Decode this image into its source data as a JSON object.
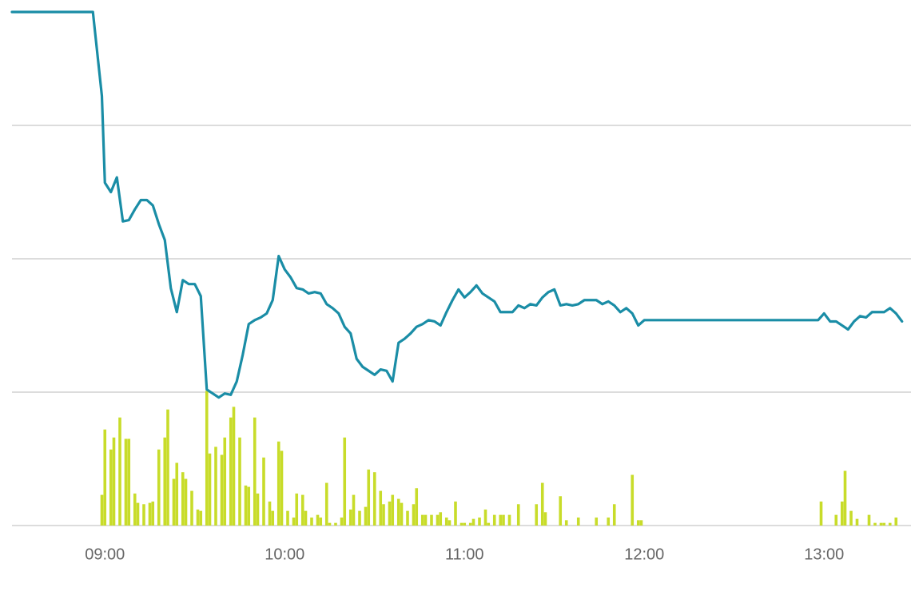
{
  "chart_data": {
    "type": "line",
    "xlim": [
      509,
      809
    ],
    "ylim": [
      0,
      3.85
    ],
    "xticks": [
      {
        "value": 540,
        "label": "09:00"
      },
      {
        "value": 600,
        "label": "10:00"
      },
      {
        "value": 660,
        "label": "11:00"
      },
      {
        "value": 720,
        "label": "12:00"
      },
      {
        "value": 780,
        "label": "13:00"
      }
    ],
    "yticks": [
      0,
      1,
      2,
      3
    ],
    "grid": true,
    "series": [
      {
        "type": "line",
        "color": "#1a8da6",
        "x": [
          509,
          536,
          539,
          540,
          542,
          544,
          546,
          548,
          550,
          552,
          554,
          556,
          558,
          560,
          562,
          564,
          566,
          568,
          570,
          572,
          574,
          576,
          578,
          580,
          582,
          584,
          586,
          588,
          590,
          592,
          594,
          596,
          598,
          600,
          602,
          604,
          606,
          608,
          610,
          612,
          614,
          616,
          618,
          620,
          622,
          624,
          626,
          628,
          630,
          632,
          634,
          636,
          638,
          640,
          642,
          644,
          646,
          648,
          650,
          652,
          654,
          656,
          658,
          660,
          662,
          664,
          666,
          668,
          670,
          672,
          674,
          676,
          678,
          680,
          682,
          684,
          686,
          688,
          690,
          692,
          694,
          696,
          698,
          700,
          702,
          704,
          706,
          708,
          710,
          712,
          714,
          716,
          718,
          720,
          778,
          780,
          782,
          784,
          786,
          788,
          790,
          792,
          794,
          796,
          798,
          800,
          802,
          804,
          806
        ],
        "values": [
          3.85,
          3.85,
          3.22,
          2.57,
          2.5,
          2.61,
          2.28,
          2.29,
          2.37,
          2.44,
          2.44,
          2.4,
          2.26,
          2.14,
          1.78,
          1.6,
          1.84,
          1.81,
          1.81,
          1.72,
          1.02,
          0.99,
          0.96,
          0.99,
          0.98,
          1.08,
          1.28,
          1.51,
          1.54,
          1.56,
          1.59,
          1.69,
          2.02,
          1.92,
          1.86,
          1.78,
          1.77,
          1.74,
          1.75,
          1.74,
          1.66,
          1.63,
          1.59,
          1.49,
          1.44,
          1.25,
          1.19,
          1.16,
          1.13,
          1.17,
          1.16,
          1.08,
          1.37,
          1.4,
          1.44,
          1.49,
          1.51,
          1.54,
          1.53,
          1.5,
          1.6,
          1.69,
          1.77,
          1.71,
          1.75,
          1.8,
          1.74,
          1.71,
          1.68,
          1.6,
          1.6,
          1.6,
          1.65,
          1.63,
          1.66,
          1.65,
          1.71,
          1.75,
          1.77,
          1.65,
          1.66,
          1.65,
          1.66,
          1.69,
          1.69,
          1.69,
          1.66,
          1.68,
          1.65,
          1.6,
          1.63,
          1.59,
          1.5,
          1.54,
          1.54,
          1.59,
          1.53,
          1.53,
          1.5,
          1.47,
          1.53,
          1.57,
          1.56,
          1.6,
          1.6,
          1.6,
          1.63,
          1.59,
          1.53
        ]
      },
      {
        "type": "bar",
        "color": "#c8dc2a",
        "x": [
          539,
          540,
          542,
          543,
          545,
          547,
          548,
          550,
          551,
          553,
          555,
          556,
          558,
          560,
          561,
          563,
          564,
          566,
          567,
          569,
          571,
          572,
          574,
          575,
          577,
          579,
          580,
          582,
          583,
          585,
          587,
          588,
          590,
          591,
          593,
          595,
          596,
          598,
          599,
          601,
          603,
          604,
          606,
          607,
          609,
          611,
          612,
          614,
          615,
          617,
          619,
          620,
          622,
          623,
          625,
          627,
          628,
          630,
          632,
          633,
          635,
          636,
          638,
          639,
          641,
          643,
          644,
          646,
          647,
          649,
          651,
          652,
          654,
          655,
          657,
          659,
          660,
          662,
          663,
          665,
          667,
          668,
          670,
          672,
          673,
          675,
          678,
          684,
          686,
          687,
          692,
          694,
          698,
          704,
          708,
          710,
          716,
          718,
          719,
          779,
          784,
          786,
          787,
          789,
          791,
          795,
          797,
          799,
          800,
          802,
          804
        ],
        "values": [
          0.23,
          0.72,
          0.57,
          0.66,
          0.81,
          0.65,
          0.65,
          0.24,
          0.17,
          0.16,
          0.17,
          0.18,
          0.57,
          0.66,
          0.87,
          0.35,
          0.47,
          0.4,
          0.35,
          0.26,
          0.12,
          0.11,
          1.01,
          0.54,
          0.59,
          0.53,
          0.66,
          0.81,
          0.89,
          0.66,
          0.3,
          0.29,
          0.81,
          0.24,
          0.51,
          0.18,
          0.11,
          0.63,
          0.56,
          0.11,
          0.06,
          0.24,
          0.23,
          0.11,
          0.06,
          0.08,
          0.06,
          0.32,
          0.02,
          0.02,
          0.06,
          0.66,
          0.12,
          0.23,
          0.11,
          0.14,
          0.42,
          0.4,
          0.26,
          0.16,
          0.18,
          0.23,
          0.2,
          0.17,
          0.11,
          0.16,
          0.28,
          0.08,
          0.08,
          0.08,
          0.08,
          0.1,
          0.06,
          0.04,
          0.18,
          0.02,
          0.02,
          0.02,
          0.05,
          0.06,
          0.12,
          0.02,
          0.08,
          0.08,
          0.08,
          0.08,
          0.16,
          0.16,
          0.32,
          0.1,
          0.22,
          0.04,
          0.06,
          0.06,
          0.06,
          0.16,
          0.38,
          0.04,
          0.04,
          0.18,
          0.08,
          0.18,
          0.41,
          0.11,
          0.05,
          0.08,
          0.02,
          0.02,
          0.02,
          0.02,
          0.06
        ]
      }
    ]
  }
}
